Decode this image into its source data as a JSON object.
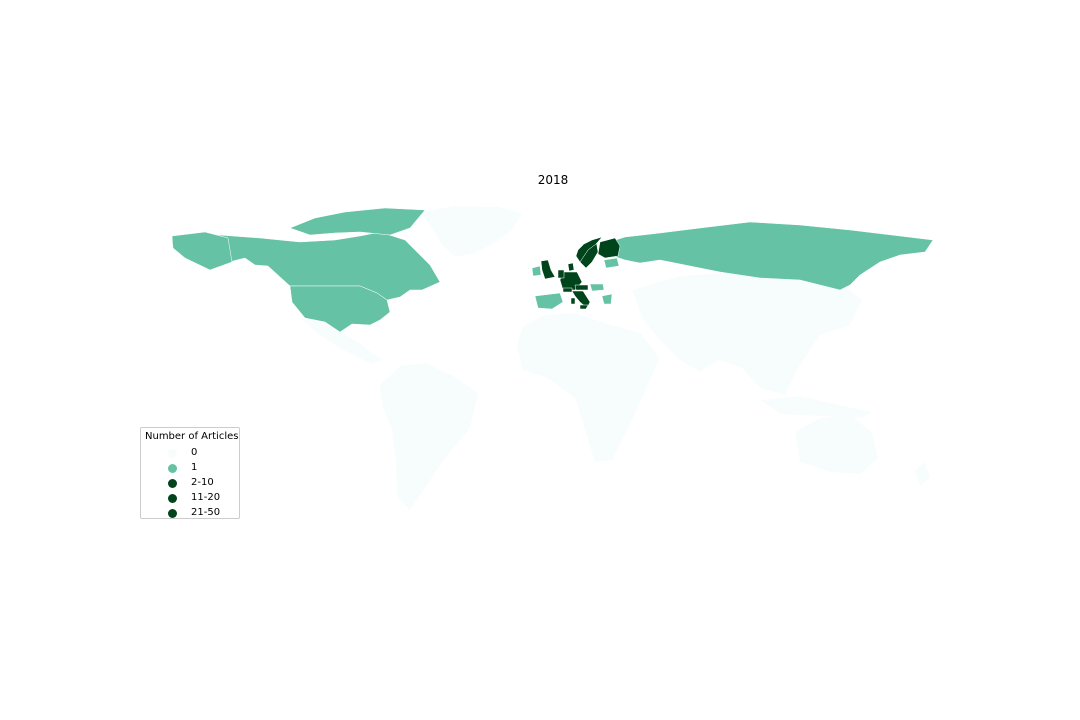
{
  "chart_data": {
    "type": "choropleth",
    "title": "2018",
    "legend": {
      "title": "Number of Articles",
      "placement": "bottom-left",
      "entries": [
        {
          "label": "0",
          "color": "#f7fcfd"
        },
        {
          "label": "1",
          "color": "#66c2a4"
        },
        {
          "label": "2-10",
          "color": "#00441b"
        },
        {
          "label": "11-20",
          "color": "#00441b"
        },
        {
          "label": "21-50",
          "color": "#00441b"
        }
      ]
    },
    "regions": [
      {
        "name": "Canada",
        "bin": "1"
      },
      {
        "name": "United States",
        "bin": "1"
      },
      {
        "name": "Russia",
        "bin": "1"
      },
      {
        "name": "Spain",
        "bin": "1"
      },
      {
        "name": "Ireland",
        "bin": "1"
      },
      {
        "name": "Hungary",
        "bin": "1"
      },
      {
        "name": "Greece",
        "bin": "1"
      },
      {
        "name": "Belarus",
        "bin": "1"
      },
      {
        "name": "Estonia",
        "bin": "1"
      },
      {
        "name": "United Kingdom",
        "bin": "2-10"
      },
      {
        "name": "Germany",
        "bin": "2-10"
      },
      {
        "name": "Italy",
        "bin": "2-10"
      },
      {
        "name": "Sweden",
        "bin": "2-10"
      },
      {
        "name": "Finland",
        "bin": "2-10"
      },
      {
        "name": "Norway",
        "bin": "2-10"
      },
      {
        "name": "Denmark",
        "bin": "2-10"
      },
      {
        "name": "Netherlands",
        "bin": "2-10"
      },
      {
        "name": "Austria",
        "bin": "2-10"
      },
      {
        "name": "Switzerland",
        "bin": "2-10"
      },
      {
        "name": "Greenland",
        "bin": "0"
      },
      {
        "name": "Mexico",
        "bin": "0"
      },
      {
        "name": "South America",
        "bin": "0"
      },
      {
        "name": "Africa",
        "bin": "0"
      },
      {
        "name": "Asia",
        "bin": "0"
      },
      {
        "name": "Australia",
        "bin": "0"
      },
      {
        "name": "New Zealand",
        "bin": "0"
      }
    ]
  }
}
